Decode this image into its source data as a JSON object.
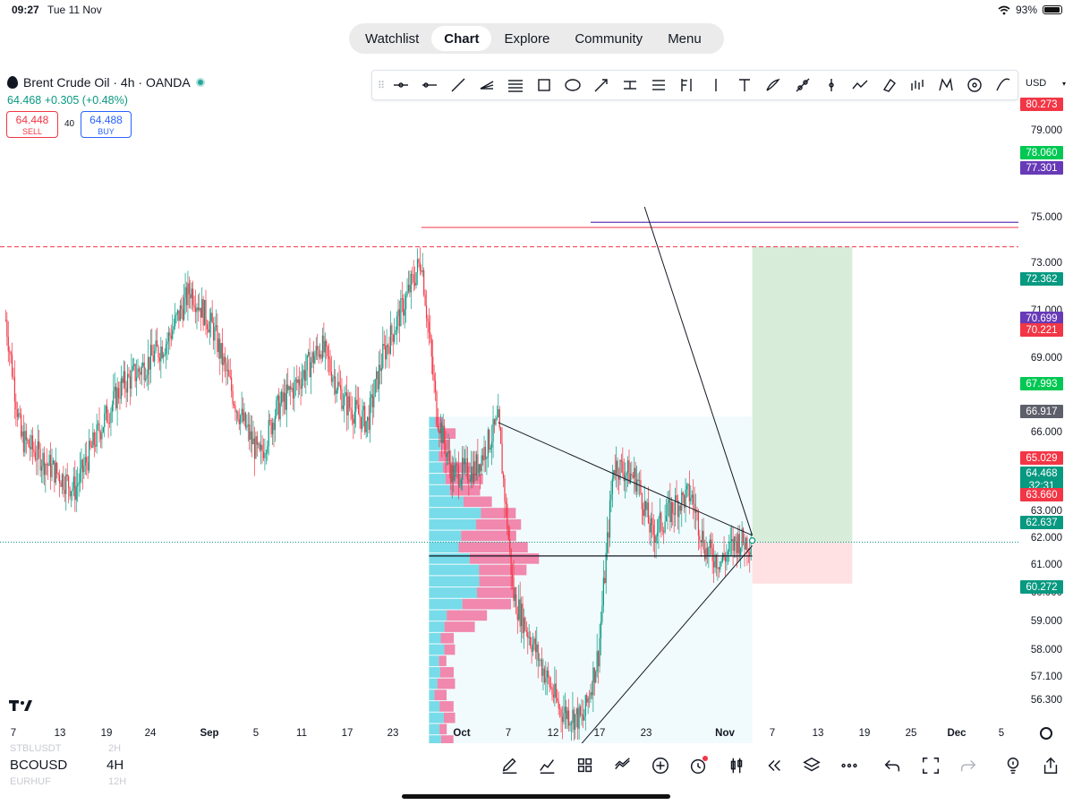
{
  "status": {
    "time": "09:27",
    "date": "Tue 11 Nov",
    "battery": "93%"
  },
  "nav": {
    "tabs": [
      "Watchlist",
      "Chart",
      "Explore",
      "Community",
      "Menu"
    ],
    "active": "Chart"
  },
  "symbol": {
    "title": "Brent Crude Oil · 4h · OANDA",
    "last": "64.468",
    "change": "+0.305",
    "change_pct": "(+0.48%)",
    "sell_price": "64.448",
    "sell_label": "SELL",
    "buy_price": "64.488",
    "buy_label": "BUY",
    "spread": "40"
  },
  "toolbar": {
    "tools": [
      "horizontal-ray-tool",
      "horizontal-line-tool",
      "trend-line-tool",
      "pitchfork-tool",
      "parallel-channel-tool",
      "rectangle-tool",
      "ellipse-tool",
      "arrow-tool",
      "price-range-tool",
      "date-range-tool",
      "fib-retracement-tool",
      "vertical-marker-tool",
      "text-tool",
      "brush-tool",
      "path-tool",
      "vertical-line-tool",
      "forecast-tool",
      "eraser-tool",
      "bars-pattern-tool",
      "xabcd-pattern-tool",
      "circle-tool",
      "curve-tool"
    ],
    "currency": "USD"
  },
  "price_axis": {
    "ticks": [
      "79.000",
      "75.000",
      "73.000",
      "71.000",
      "69.000",
      "66.000",
      "63.000",
      "62.000",
      "61.000",
      "60.000",
      "59.000",
      "58.000",
      "57.100",
      "56.300"
    ],
    "badges": [
      {
        "value": "80.273",
        "color": "#f23645"
      },
      {
        "value": "78.060",
        "color": "#00c853"
      },
      {
        "value": "77.301",
        "color": "#673ab7"
      },
      {
        "value": "72.362",
        "color": "#089981"
      },
      {
        "value": "70.699",
        "color": "#673ab7"
      },
      {
        "value": "70.221",
        "color": "#f23645"
      },
      {
        "value": "67.993",
        "color": "#00c853"
      },
      {
        "value": "66.917",
        "color": "#5d606b"
      },
      {
        "value": "65.029",
        "color": "#f23645"
      },
      {
        "value": "64.468",
        "color": "#089981"
      },
      {
        "value": "32:31",
        "color": "#089981"
      },
      {
        "value": "63.660",
        "color": "#f23645"
      },
      {
        "value": "62.637",
        "color": "#089981"
      },
      {
        "value": "60.272",
        "color": "#089981"
      }
    ]
  },
  "time_axis": {
    "labels": [
      {
        "text": "7",
        "major": false
      },
      {
        "text": "13",
        "major": false
      },
      {
        "text": "19",
        "major": false
      },
      {
        "text": "24",
        "major": false
      },
      {
        "text": "Sep",
        "major": true
      },
      {
        "text": "5",
        "major": false
      },
      {
        "text": "11",
        "major": false
      },
      {
        "text": "17",
        "major": false
      },
      {
        "text": "23",
        "major": false
      },
      {
        "text": "Oct",
        "major": true
      },
      {
        "text": "7",
        "major": false
      },
      {
        "text": "12",
        "major": false
      },
      {
        "text": "17",
        "major": false
      },
      {
        "text": "23",
        "major": false
      },
      {
        "text": "Nov",
        "major": true
      },
      {
        "text": "7",
        "major": false
      },
      {
        "text": "13",
        "major": false
      },
      {
        "text": "19",
        "major": false
      },
      {
        "text": "25",
        "major": false
      },
      {
        "text": "Dec",
        "major": true
      },
      {
        "text": "5",
        "major": false
      }
    ]
  },
  "bottom": {
    "symbol": "BCOUSD",
    "interval": "4H",
    "ghost_above": "STBLUSDT",
    "ghost_above_int": "2H",
    "ghost_below": "EURHUF",
    "ghost_below_int": "12H",
    "tools": [
      "pen-icon",
      "indicators-icon",
      "layout-grid-icon",
      "compare-icon",
      "add-icon",
      "alert-icon",
      "candles-icon",
      "replay-icon",
      "layers-icon",
      "more-icon",
      "undo-icon",
      "fullscreen-icon",
      "redo-icon",
      "idea-icon",
      "share-icon"
    ]
  },
  "colors": {
    "up": "#089981",
    "down": "#f23645",
    "accent": "#2962ff"
  },
  "chart_data": {
    "type": "candlestick",
    "symbol": "BCOUSD",
    "timeframe": "4h",
    "ylim": [
      55.5,
      80.8
    ],
    "x_range": [
      "2025-08-07",
      "2025-12-08"
    ],
    "close_path": [
      [
        "2025-08-06",
        68.8
      ],
      [
        "2025-08-08",
        66.5
      ],
      [
        "2025-08-12",
        65.9
      ],
      [
        "2025-08-15",
        65.5
      ],
      [
        "2025-08-18",
        66.6
      ],
      [
        "2025-08-21",
        67.5
      ],
      [
        "2025-08-24",
        67.9
      ],
      [
        "2025-08-27",
        68.4
      ],
      [
        "2025-08-30",
        69.4
      ],
      [
        "2025-09-02",
        68.6
      ],
      [
        "2025-09-05",
        67.1
      ],
      [
        "2025-09-08",
        66.1
      ],
      [
        "2025-09-10",
        67.0
      ],
      [
        "2025-09-13",
        67.6
      ],
      [
        "2025-09-16",
        68.3
      ],
      [
        "2025-09-19",
        67.2
      ],
      [
        "2025-09-22",
        66.8
      ],
      [
        "2025-09-24",
        68.1
      ],
      [
        "2025-09-27",
        69.2
      ],
      [
        "2025-09-29",
        70.0
      ],
      [
        "2025-10-01",
        67.0
      ],
      [
        "2025-10-03",
        65.8
      ],
      [
        "2025-10-06",
        65.9
      ],
      [
        "2025-10-09",
        66.8
      ],
      [
        "2025-10-11",
        63.4
      ],
      [
        "2025-10-14",
        62.3
      ],
      [
        "2025-10-17",
        61.2
      ],
      [
        "2025-10-20",
        61.0
      ],
      [
        "2025-10-22",
        62.3
      ],
      [
        "2025-10-24",
        66.0
      ],
      [
        "2025-10-27",
        65.7
      ],
      [
        "2025-10-29",
        64.6
      ],
      [
        "2025-11-01",
        65.2
      ],
      [
        "2025-11-03",
        65.4
      ],
      [
        "2025-11-05",
        64.3
      ],
      [
        "2025-11-07",
        64.1
      ],
      [
        "2025-11-09",
        64.5
      ],
      [
        "2025-11-11",
        64.468
      ]
    ],
    "horizontal_levels": [
      {
        "price": 77.301,
        "color": "#673ab7",
        "style": "solid"
      },
      {
        "price": 70.221,
        "color": "#f23645",
        "style": "dashed"
      },
      {
        "price": 70.699,
        "color": "#673ab7",
        "style": "solid"
      },
      {
        "price": 64.468,
        "color": "#089981",
        "style": "dotted"
      },
      {
        "price": 64.2,
        "color": "#131722",
        "style": "solid"
      }
    ],
    "triangle": {
      "upper": [
        [
          "2025-10-09",
          66.8
        ],
        [
          "2025-11-11",
          64.6
        ]
      ],
      "lower": [
        [
          "2025-10-19",
          60.4
        ],
        [
          "2025-11-11",
          64.4
        ]
      ],
      "diagonal": [
        [
          "2025-10-28",
          71.0
        ],
        [
          "2025-11-11",
          64.6
        ]
      ]
    },
    "long_position": {
      "start": "2025-11-11",
      "end": "2025-11-24",
      "entry": 64.468,
      "target": 70.221,
      "stop": 63.66
    },
    "volume_profile": {
      "range": [
        "2025-09-30",
        "2025-11-11"
      ],
      "low": 60.272,
      "high": 66.917,
      "poc": 64.2
    }
  }
}
